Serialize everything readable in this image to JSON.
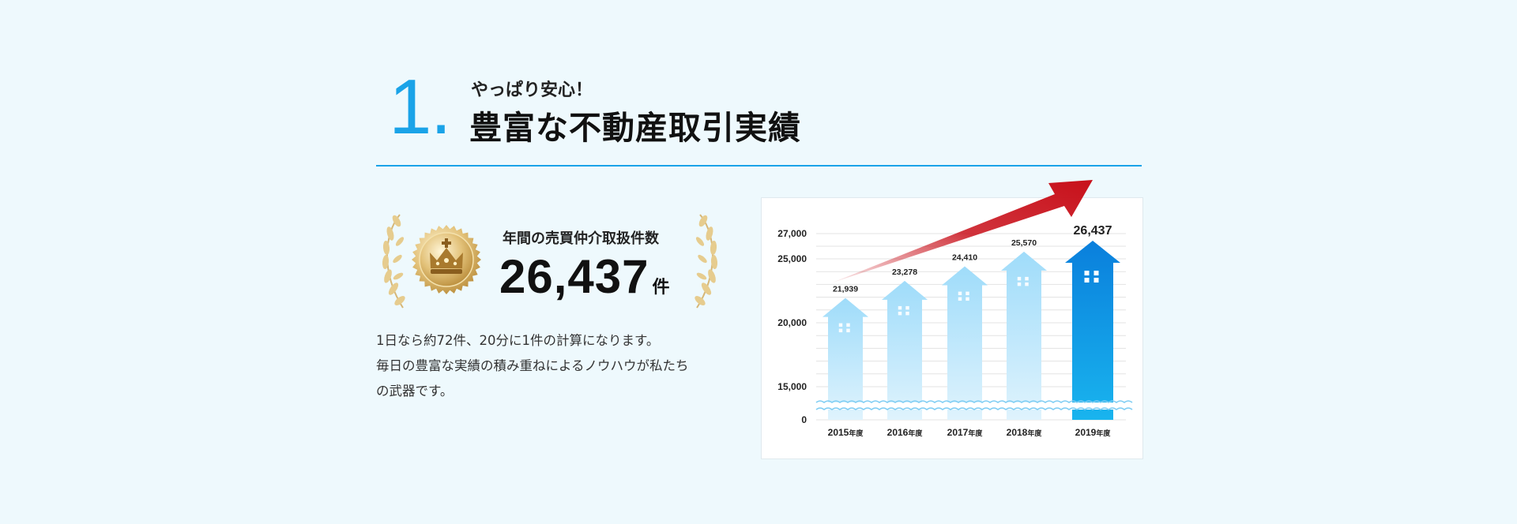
{
  "heading": {
    "number": "1.",
    "subtitle": "やっぱり安心！",
    "title": "豊富な不動産取引実績"
  },
  "award": {
    "label": "年間の売買仲介取扱件数",
    "value": "26,437",
    "unit": "件"
  },
  "description": [
    "1日なら約72件、20分に1件の計算になります。",
    "毎日の豊富な実績の積み重ねによるノウハウが私たち",
    "の武器です。"
  ],
  "colors": {
    "accent": "#1aa3e8",
    "arrow": "#c8101a",
    "bar_light": "#b5e4fb",
    "bar_highlight": "#0a84dd"
  },
  "chart_data": {
    "type": "bar",
    "categories": [
      "2015年度",
      "2016年度",
      "2017年度",
      "2018年度",
      "2019年度"
    ],
    "values": [
      21939,
      23278,
      24410,
      25570,
      26437
    ],
    "value_labels": [
      "21,939",
      "23,278",
      "24,410",
      "25,570",
      "26,437"
    ],
    "y_ticks": [
      0,
      15000,
      20000,
      25000,
      27000
    ],
    "y_tick_labels": [
      "0",
      "15,000",
      "20,000",
      "25,000",
      "27,000"
    ],
    "y_axis_break": true,
    "grid": true,
    "highlight_index": 4,
    "trend_arrow": true,
    "title": "",
    "xlabel": "",
    "ylabel": ""
  }
}
